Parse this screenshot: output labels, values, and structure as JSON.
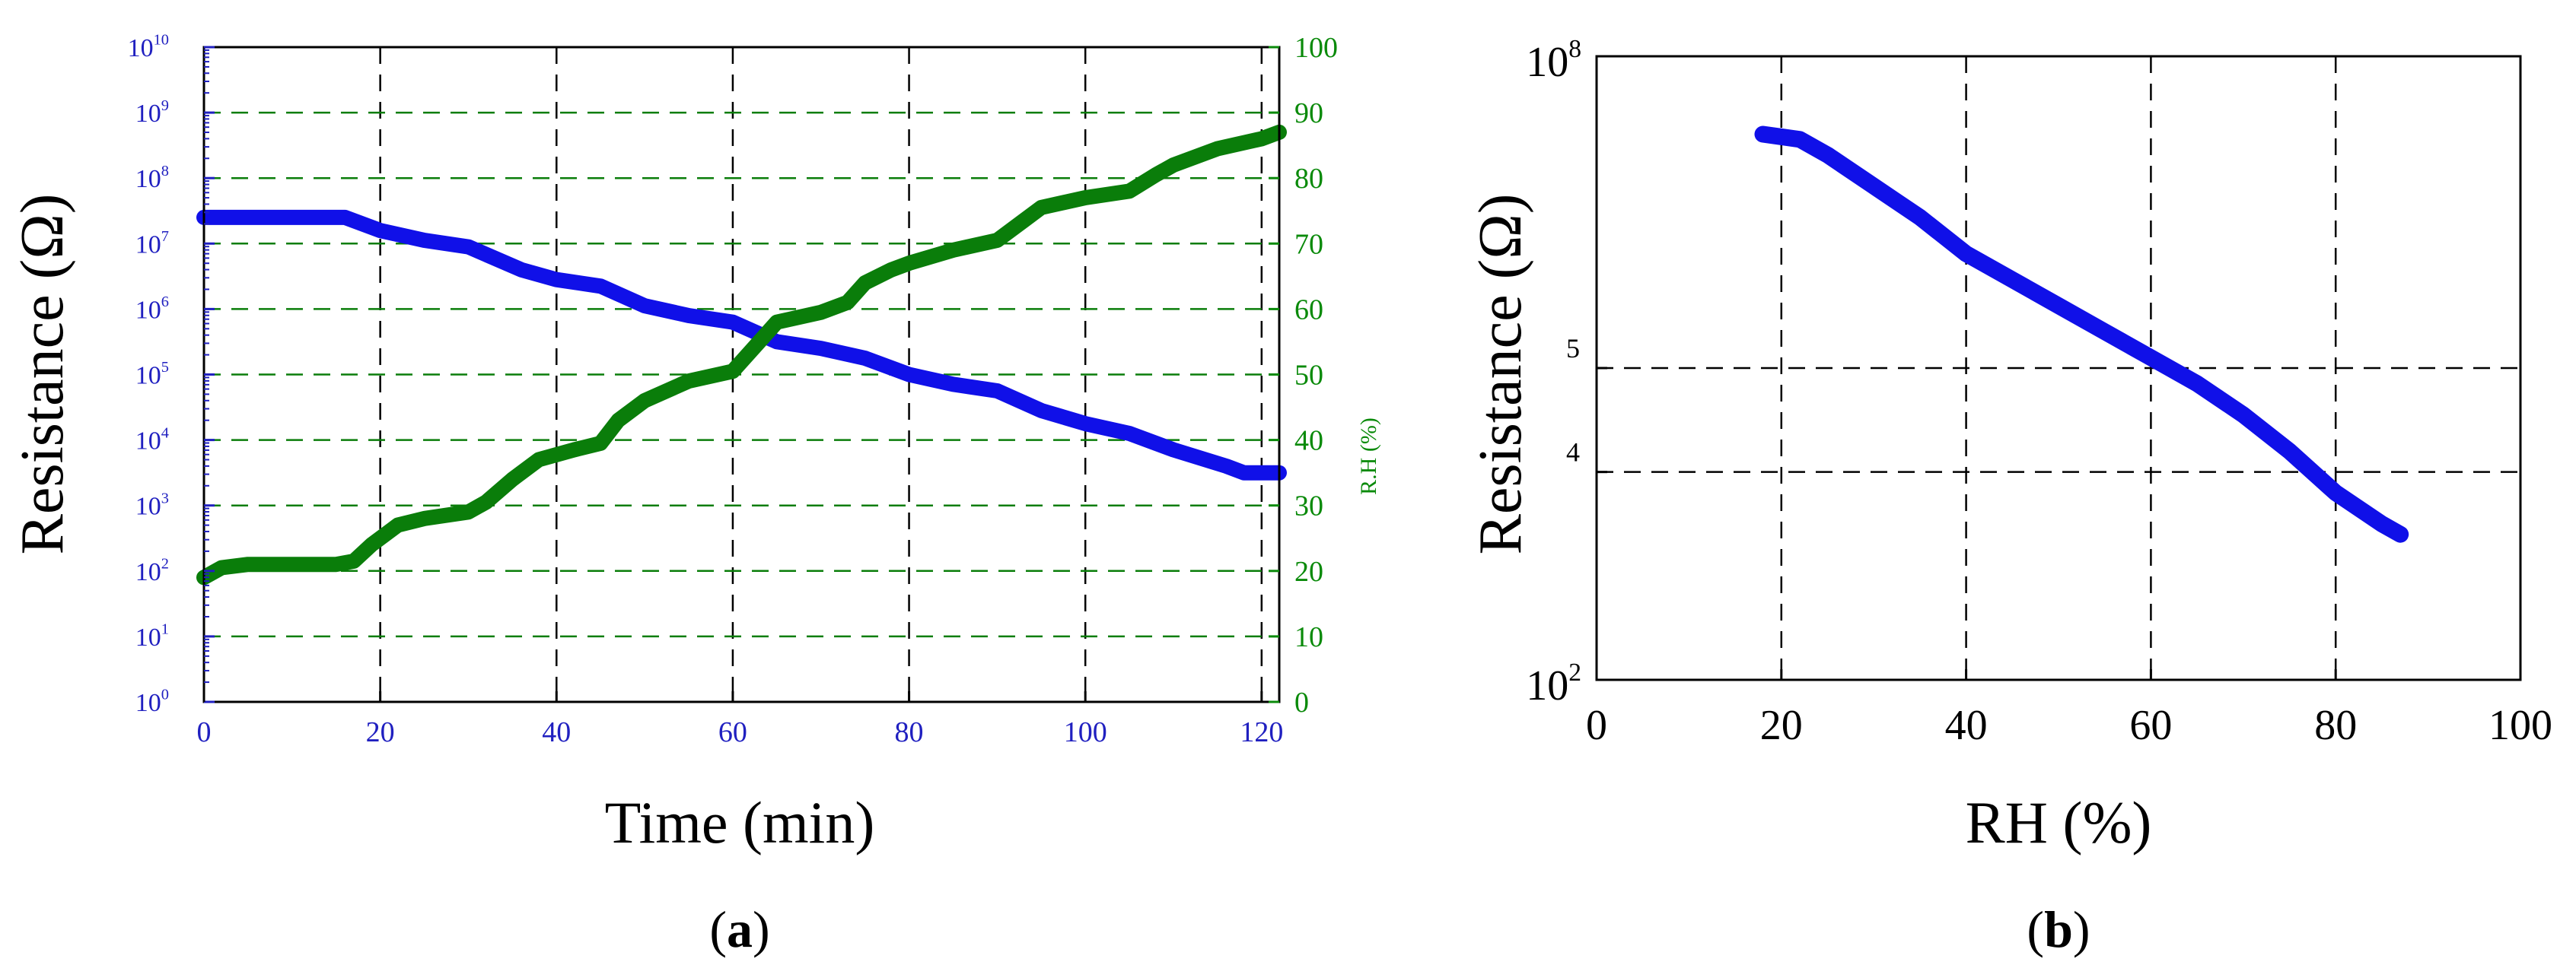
{
  "colors": {
    "blue_series": "#1010e8",
    "green_series": "#0a7d0a",
    "left_axis": "#2020c0",
    "right_axis": "#0a8a0a",
    "grid_a": "#000000",
    "grid_a_horizontal": "#0a7d0a",
    "frame": "#000000"
  },
  "chart_data": [
    {
      "panel_label": "a",
      "type": "line",
      "xlabel": "Time (min)",
      "ylabel_left": "Resistance (Ω)",
      "ylabel_right": "R.H (%)",
      "xlim": [
        0,
        122
      ],
      "x_ticks": [
        "0",
        "20",
        "40",
        "60",
        "80",
        "100",
        "120"
      ],
      "y_left_scale": "log",
      "y_left_ticks": [
        {
          "base": "10",
          "exp": "0"
        },
        {
          "base": "10",
          "exp": "1"
        },
        {
          "base": "10",
          "exp": "2"
        },
        {
          "base": "10",
          "exp": "3"
        },
        {
          "base": "10",
          "exp": "4"
        },
        {
          "base": "10",
          "exp": "5"
        },
        {
          "base": "10",
          "exp": "6"
        },
        {
          "base": "10",
          "exp": "7"
        },
        {
          "base": "10",
          "exp": "8"
        },
        {
          "base": "10",
          "exp": "9"
        },
        {
          "base": "10",
          "exp": "10"
        }
      ],
      "y_left_range": [
        0,
        10
      ],
      "y_right_ticks": [
        "0",
        "10",
        "20",
        "30",
        "40",
        "50",
        "60",
        "70",
        "80",
        "90",
        "100"
      ],
      "y_right_range": [
        0,
        100
      ],
      "grid": true,
      "series": [
        {
          "axis": "left",
          "color_key": "blue_series",
          "x": [
            0,
            16,
            20,
            25,
            30,
            36,
            40,
            45,
            50,
            55,
            60,
            65,
            70,
            75,
            80,
            85,
            90,
            95,
            100,
            105,
            110,
            116,
            118,
            122
          ],
          "log10_values": [
            7.4,
            7.4,
            7.2,
            7.05,
            6.95,
            6.6,
            6.45,
            6.35,
            6.05,
            5.9,
            5.8,
            5.5,
            5.4,
            5.25,
            5.0,
            4.85,
            4.75,
            4.45,
            4.25,
            4.1,
            3.85,
            3.6,
            3.5,
            3.5
          ]
        },
        {
          "axis": "right",
          "color_key": "green_series",
          "x": [
            0,
            2,
            5,
            10,
            15,
            17,
            19,
            22,
            25,
            30,
            32,
            35,
            38,
            42,
            45,
            47,
            50,
            55,
            60,
            63,
            65,
            70,
            73,
            75,
            78,
            80,
            85,
            90,
            93,
            95,
            100,
            105,
            108,
            110,
            115,
            120,
            122
          ],
          "values": [
            19,
            20.5,
            21,
            21,
            21,
            21.5,
            24,
            27,
            28,
            29,
            30.5,
            34,
            37,
            38.5,
            39.5,
            43,
            46,
            49,
            50.5,
            55,
            58,
            59.5,
            61,
            64,
            66,
            67,
            69,
            70.5,
            73.5,
            75.5,
            77,
            78,
            80.5,
            82,
            84.5,
            86,
            87
          ]
        }
      ]
    },
    {
      "panel_label": "b",
      "type": "line",
      "xlabel": "RH (%)",
      "ylabel": "Resistance (Ω)",
      "xlim": [
        0,
        100
      ],
      "x_ticks": [
        "0",
        "20",
        "40",
        "60",
        "80",
        "100"
      ],
      "y_scale": "log",
      "y_range": [
        2,
        8
      ],
      "y_ticks": [
        {
          "base": "10",
          "exp": "2"
        },
        {
          "base": "",
          "exp": "4"
        },
        {
          "base": "",
          "exp": "5"
        },
        {
          "base": "10",
          "exp": "8"
        }
      ],
      "grid": true,
      "series": [
        {
          "color_key": "blue_series",
          "x": [
            18,
            22,
            25,
            30,
            35,
            40,
            45,
            50,
            55,
            60,
            65,
            70,
            75,
            80,
            85,
            87
          ],
          "log10_values": [
            7.25,
            7.2,
            7.05,
            6.75,
            6.45,
            6.1,
            5.85,
            5.6,
            5.35,
            5.1,
            4.85,
            4.55,
            4.2,
            3.8,
            3.5,
            3.4
          ]
        }
      ]
    }
  ]
}
